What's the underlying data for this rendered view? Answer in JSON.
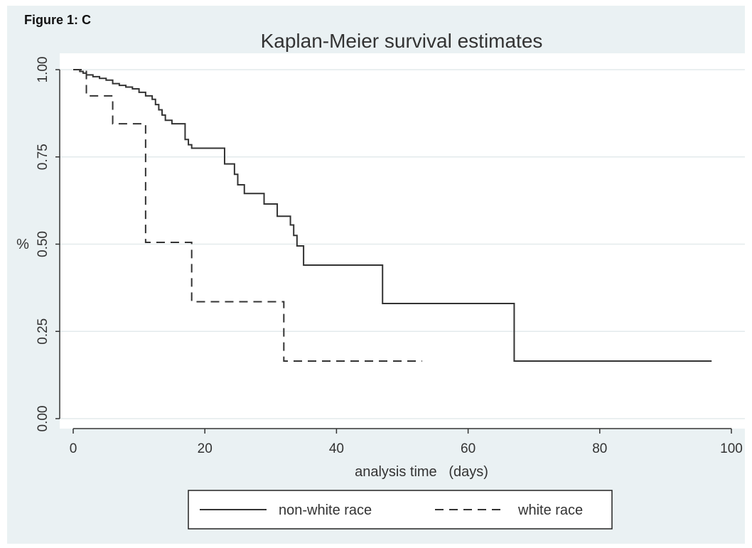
{
  "figure_label": "Figure 1: C",
  "chart_data": {
    "type": "line",
    "title": "Kaplan-Meier survival estimates",
    "xlabel": "analysis time   (days)",
    "ylabel": "%",
    "xlim": [
      0,
      100
    ],
    "ylim": [
      0,
      1
    ],
    "x_ticks": [
      "0",
      "20",
      "40",
      "60",
      "80",
      "100"
    ],
    "x_tick_values": [
      0,
      20,
      40,
      60,
      80,
      100
    ],
    "y_ticks": [
      "0.00",
      "0.25",
      "0.50",
      "0.75",
      "1.00"
    ],
    "y_tick_values": [
      0,
      0.25,
      0.5,
      0.75,
      1.0
    ],
    "grid": "horizontal",
    "legend_position": "bottom",
    "series": [
      {
        "name": "non-white race",
        "style": "solid",
        "color": "#333333",
        "steps": [
          [
            0,
            1.0
          ],
          [
            1,
            0.995
          ],
          [
            1.5,
            0.99
          ],
          [
            2,
            0.985
          ],
          [
            3,
            0.98
          ],
          [
            4,
            0.975
          ],
          [
            5,
            0.97
          ],
          [
            6,
            0.96
          ],
          [
            7,
            0.955
          ],
          [
            8,
            0.95
          ],
          [
            9,
            0.945
          ],
          [
            10,
            0.935
          ],
          [
            11,
            0.925
          ],
          [
            12,
            0.915
          ],
          [
            12.5,
            0.9
          ],
          [
            13,
            0.885
          ],
          [
            13.5,
            0.87
          ],
          [
            14,
            0.855
          ],
          [
            15,
            0.845
          ],
          [
            17,
            0.8
          ],
          [
            17.5,
            0.785
          ],
          [
            18,
            0.775
          ],
          [
            23,
            0.73
          ],
          [
            24.5,
            0.7
          ],
          [
            25,
            0.67
          ],
          [
            26,
            0.645
          ],
          [
            29,
            0.615
          ],
          [
            31,
            0.58
          ],
          [
            33,
            0.555
          ],
          [
            33.5,
            0.525
          ],
          [
            34,
            0.495
          ],
          [
            35,
            0.44
          ],
          [
            47,
            0.33
          ],
          [
            67,
            0.165
          ],
          [
            97,
            0.165
          ]
        ]
      },
      {
        "name": "white race",
        "style": "dashed",
        "color": "#333333",
        "steps": [
          [
            0,
            1.0
          ],
          [
            2,
            0.925
          ],
          [
            6,
            0.845
          ],
          [
            11,
            0.505
          ],
          [
            18,
            0.335
          ],
          [
            32,
            0.165
          ],
          [
            53,
            0.165
          ]
        ]
      }
    ]
  }
}
